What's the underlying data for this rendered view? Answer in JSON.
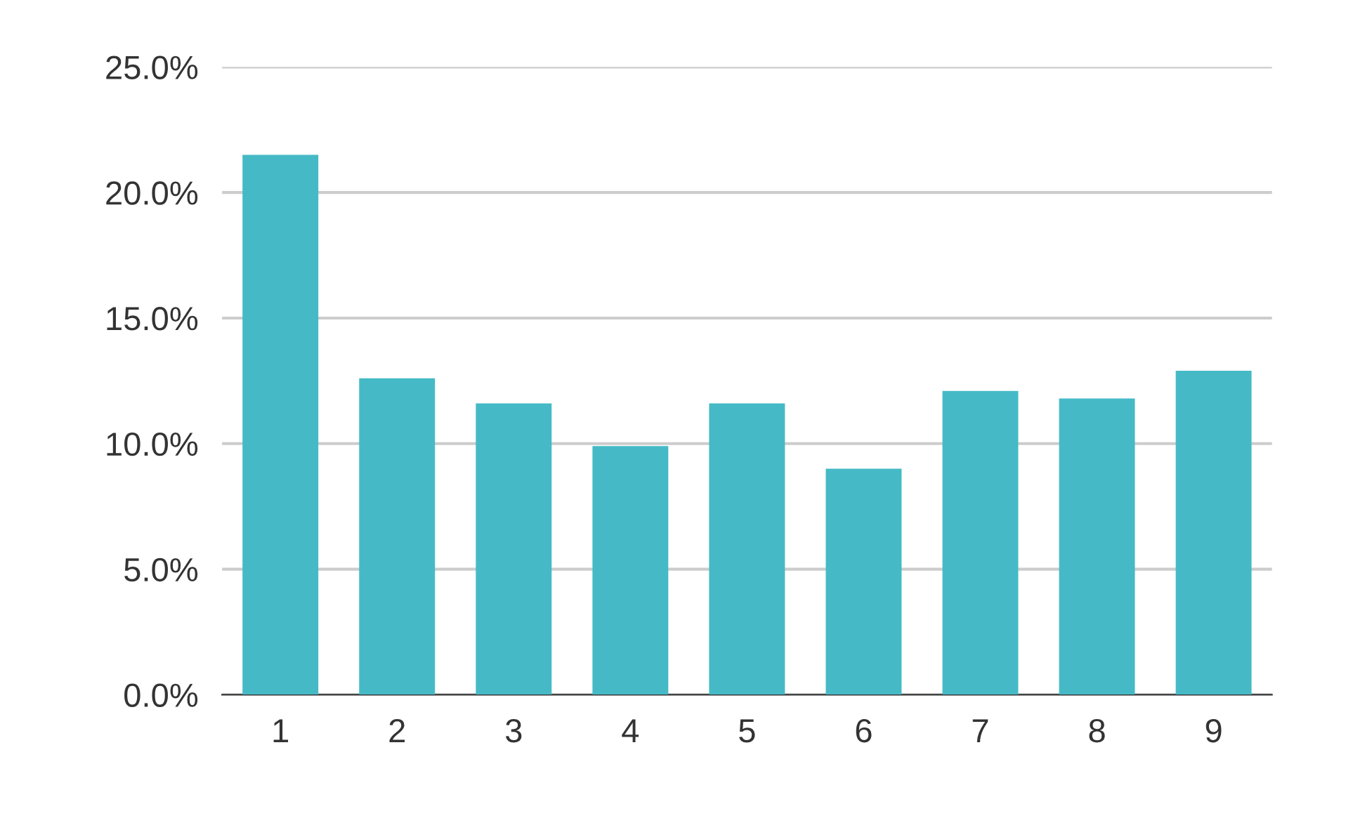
{
  "chart_data": {
    "type": "bar",
    "categories": [
      "1",
      "2",
      "3",
      "4",
      "5",
      "6",
      "7",
      "8",
      "9"
    ],
    "values": [
      21.5,
      12.6,
      11.6,
      9.9,
      11.6,
      9.0,
      12.1,
      11.8,
      12.9
    ],
    "color": "#45bac6",
    "ylim": [
      0,
      25
    ],
    "yticks": [
      {
        "value": 0,
        "label": "0.0%"
      },
      {
        "value": 5,
        "label": "5.0%"
      },
      {
        "value": 10,
        "label": "10.0%"
      },
      {
        "value": 15,
        "label": "15.0%"
      },
      {
        "value": 20,
        "label": "20.0%"
      },
      {
        "value": 25,
        "label": "25.0%"
      }
    ],
    "grid": "y"
  }
}
